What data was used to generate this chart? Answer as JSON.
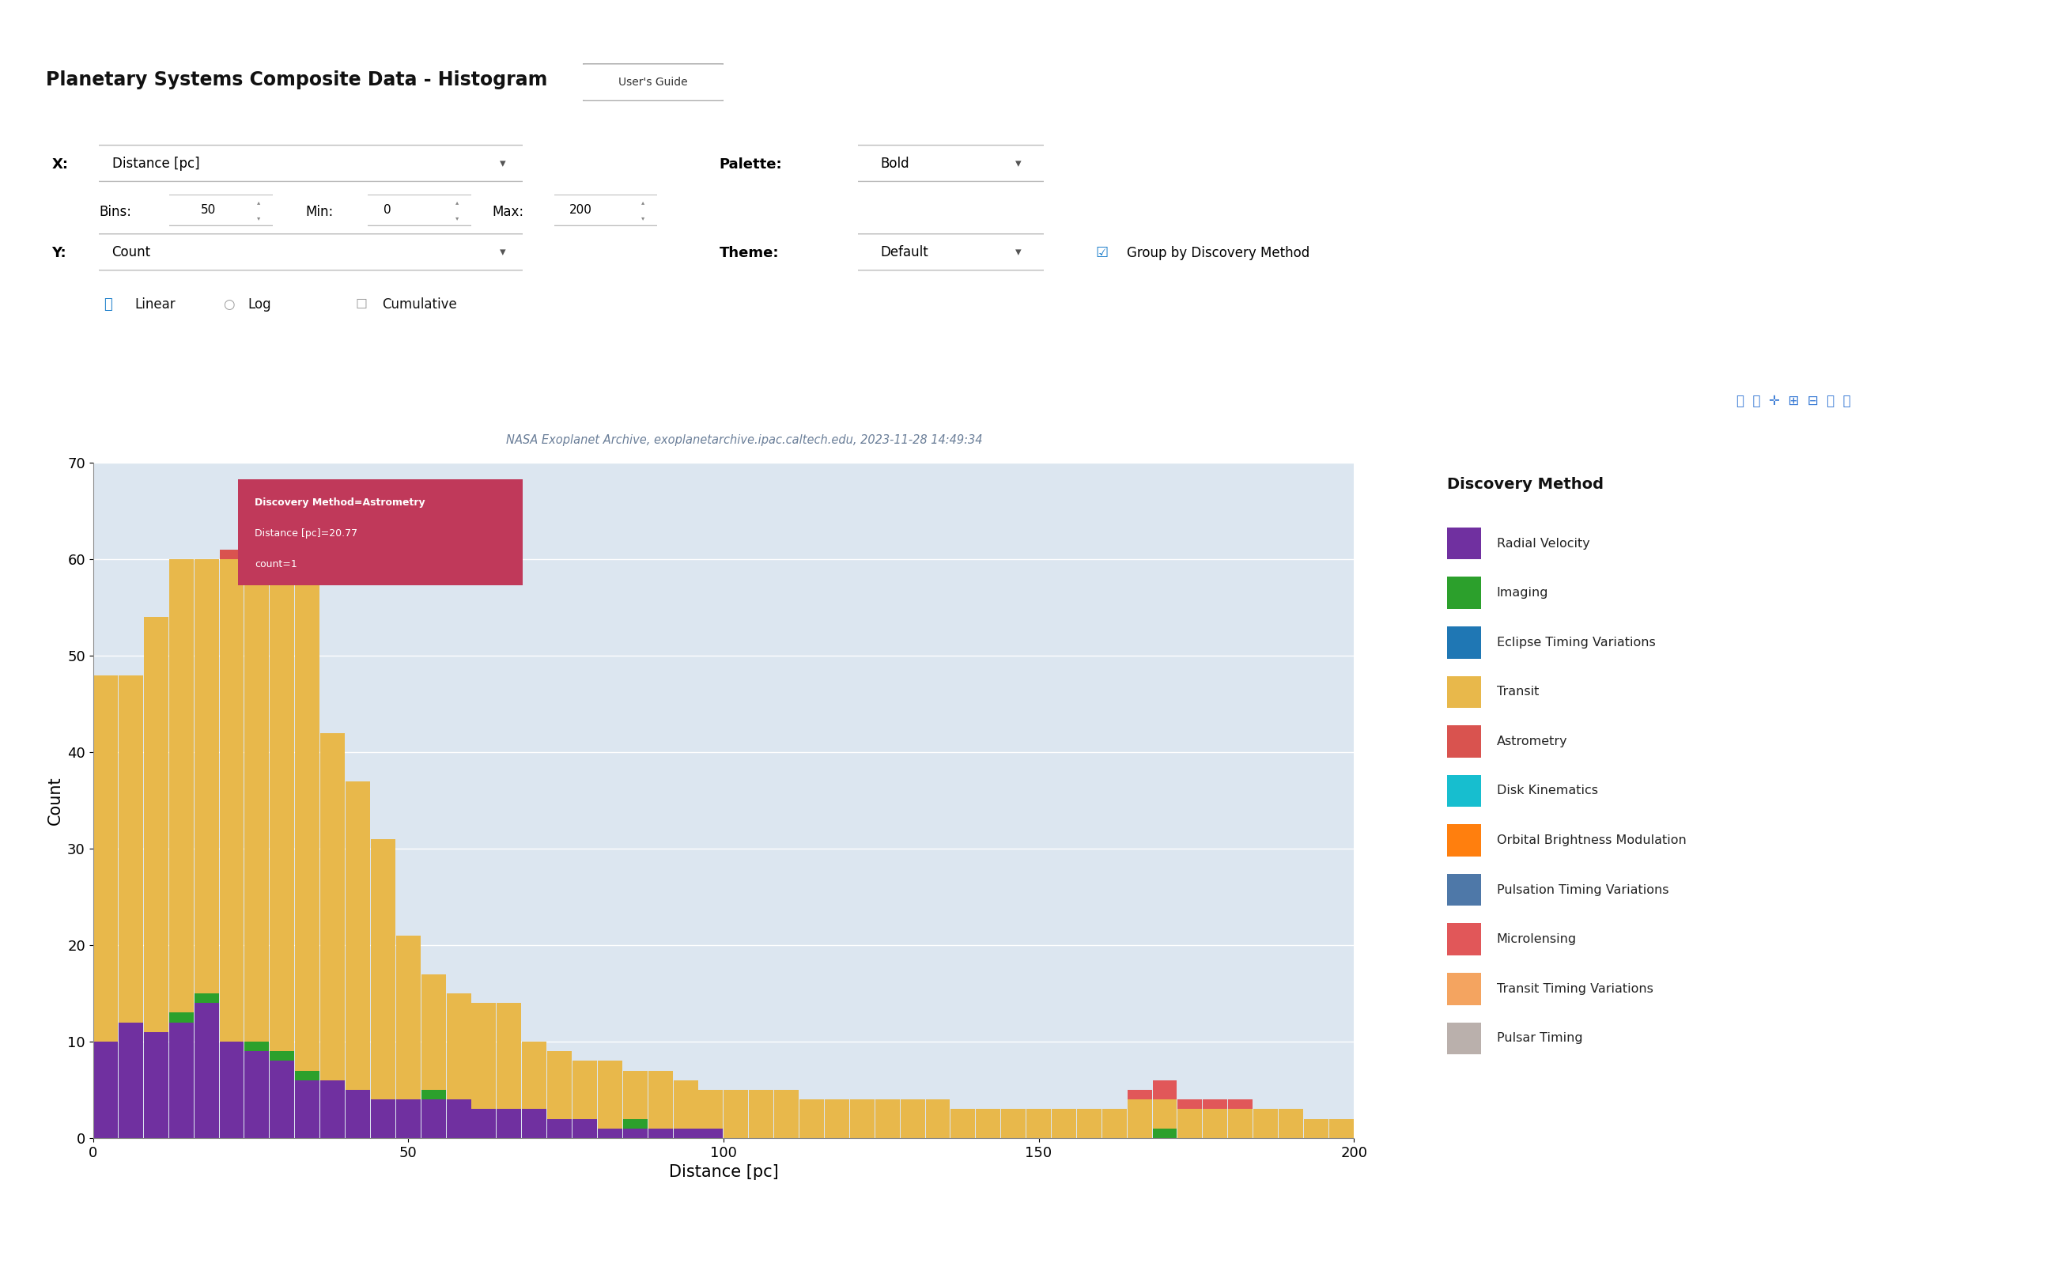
{
  "title": "Planetary Systems Composite Data - Histogram",
  "subtitle": "NASA Exoplanet Archive, exoplanetarchive.ipac.caltech.edu, 2023-11-28 14:49:34",
  "xlabel": "Distance [pc]",
  "ylabel": "Count",
  "xmin": 0,
  "xmax": 200,
  "ymin": 0,
  "ymax": 70,
  "bins": 50,
  "bg_color": "#dce6f0",
  "discovery_methods": [
    "Radial Velocity",
    "Imaging",
    "Eclipse Timing Variations",
    "Transit",
    "Astrometry",
    "Disk Kinematics",
    "Orbital Brightness Modulation",
    "Pulsation Timing Variations",
    "Microlensing",
    "Transit Timing Variations",
    "Pulsar Timing"
  ],
  "colors": {
    "Radial Velocity": "#7030a0",
    "Imaging": "#2ca02c",
    "Eclipse Timing Variations": "#1f77b4",
    "Transit": "#e8b84b",
    "Astrometry": "#d9534f",
    "Disk Kinematics": "#17becf",
    "Orbital Brightness Modulation": "#ff7f0e",
    "Pulsation Timing Variations": "#4e78a8",
    "Microlensing": "#e15759",
    "Transit Timing Variations": "#f4a460",
    "Pulsar Timing": "#bab0ac"
  },
  "bar_data": {
    "bin_edges": [
      0,
      4,
      8,
      12,
      16,
      20,
      24,
      28,
      32,
      36,
      40,
      44,
      48,
      52,
      56,
      60,
      64,
      68,
      72,
      76,
      80,
      84,
      88,
      92,
      96,
      100,
      104,
      108,
      112,
      116,
      120,
      124,
      128,
      132,
      136,
      140,
      144,
      148,
      152,
      156,
      160,
      164,
      168,
      172,
      176,
      180,
      184,
      188,
      192,
      196,
      200
    ],
    "Radial Velocity": [
      10,
      12,
      11,
      12,
      14,
      10,
      9,
      8,
      6,
      6,
      5,
      4,
      4,
      4,
      4,
      3,
      3,
      3,
      2,
      2,
      1,
      1,
      1,
      1,
      1,
      0,
      0,
      0,
      0,
      0,
      0,
      0,
      0,
      0,
      0,
      0,
      0,
      0,
      0,
      0,
      0,
      0,
      0,
      0,
      0,
      0,
      0,
      0,
      0,
      0
    ],
    "Imaging": [
      0,
      0,
      0,
      1,
      1,
      0,
      1,
      1,
      1,
      0,
      0,
      0,
      0,
      1,
      0,
      0,
      0,
      0,
      0,
      0,
      0,
      1,
      0,
      0,
      0,
      0,
      0,
      0,
      0,
      0,
      0,
      0,
      0,
      0,
      0,
      0,
      0,
      0,
      0,
      0,
      0,
      0,
      1,
      0,
      0,
      0,
      0,
      0,
      0,
      0
    ],
    "Eclipse Timing Variations": [
      0,
      0,
      0,
      0,
      0,
      0,
      0,
      0,
      0,
      0,
      0,
      0,
      0,
      0,
      0,
      0,
      0,
      0,
      0,
      0,
      0,
      0,
      0,
      0,
      0,
      0,
      0,
      0,
      0,
      0,
      0,
      0,
      0,
      0,
      0,
      0,
      0,
      0,
      0,
      0,
      0,
      0,
      0,
      0,
      0,
      0,
      0,
      0,
      0,
      0
    ],
    "Transit": [
      38,
      36,
      43,
      47,
      45,
      50,
      58,
      57,
      52,
      36,
      32,
      27,
      17,
      12,
      11,
      11,
      11,
      7,
      7,
      6,
      7,
      5,
      6,
      5,
      4,
      5,
      5,
      5,
      4,
      4,
      4,
      4,
      4,
      4,
      3,
      3,
      3,
      3,
      3,
      3,
      3,
      4,
      3,
      3,
      3,
      3,
      3,
      3,
      2,
      2
    ],
    "Astrometry": [
      0,
      0,
      0,
      0,
      0,
      1,
      0,
      0,
      0,
      0,
      0,
      0,
      0,
      0,
      0,
      0,
      0,
      0,
      0,
      0,
      0,
      0,
      0,
      0,
      0,
      0,
      0,
      0,
      0,
      0,
      0,
      0,
      0,
      0,
      0,
      0,
      0,
      0,
      0,
      0,
      0,
      0,
      0,
      0,
      0,
      0,
      0,
      0,
      0,
      0
    ],
    "Disk Kinematics": [
      0,
      0,
      0,
      0,
      0,
      0,
      0,
      0,
      0,
      0,
      0,
      0,
      0,
      0,
      0,
      0,
      0,
      0,
      0,
      0,
      0,
      0,
      0,
      0,
      0,
      0,
      0,
      0,
      0,
      0,
      0,
      0,
      0,
      0,
      0,
      0,
      0,
      0,
      0,
      0,
      0,
      0,
      0,
      0,
      0,
      0,
      0,
      0,
      0,
      0
    ],
    "Orbital Brightness Modulation": [
      0,
      0,
      0,
      0,
      0,
      0,
      0,
      0,
      0,
      0,
      0,
      0,
      0,
      0,
      0,
      0,
      0,
      0,
      0,
      0,
      0,
      0,
      0,
      0,
      0,
      0,
      0,
      0,
      0,
      0,
      0,
      0,
      0,
      0,
      0,
      0,
      0,
      0,
      0,
      0,
      0,
      0,
      0,
      0,
      0,
      0,
      0,
      0,
      0,
      0
    ],
    "Pulsation Timing Variations": [
      0,
      0,
      0,
      0,
      0,
      0,
      0,
      0,
      0,
      0,
      0,
      0,
      0,
      0,
      0,
      0,
      0,
      0,
      0,
      0,
      0,
      0,
      0,
      0,
      0,
      0,
      0,
      0,
      0,
      0,
      0,
      0,
      0,
      0,
      0,
      0,
      0,
      0,
      0,
      0,
      0,
      0,
      0,
      0,
      0,
      0,
      0,
      0,
      0,
      0
    ],
    "Microlensing": [
      0,
      0,
      0,
      0,
      0,
      0,
      0,
      0,
      0,
      0,
      0,
      0,
      0,
      0,
      0,
      0,
      0,
      0,
      0,
      0,
      0,
      0,
      0,
      0,
      0,
      0,
      0,
      0,
      0,
      0,
      0,
      0,
      0,
      0,
      0,
      0,
      0,
      0,
      0,
      0,
      0,
      1,
      2,
      1,
      1,
      1,
      0,
      0,
      0,
      0
    ],
    "Transit Timing Variations": [
      0,
      0,
      0,
      0,
      0,
      0,
      0,
      0,
      0,
      0,
      0,
      0,
      0,
      0,
      0,
      0,
      0,
      0,
      0,
      0,
      0,
      0,
      0,
      0,
      0,
      0,
      0,
      0,
      0,
      0,
      0,
      0,
      0,
      0,
      0,
      0,
      0,
      0,
      0,
      0,
      0,
      0,
      0,
      0,
      0,
      0,
      0,
      0,
      0,
      0
    ],
    "Pulsar Timing": [
      0,
      0,
      0,
      0,
      0,
      0,
      0,
      0,
      0,
      0,
      0,
      0,
      0,
      0,
      0,
      0,
      0,
      0,
      0,
      0,
      0,
      0,
      0,
      0,
      0,
      0,
      0,
      0,
      0,
      0,
      0,
      0,
      0,
      0,
      0,
      0,
      0,
      0,
      0,
      0,
      0,
      0,
      0,
      0,
      0,
      0,
      0,
      0,
      0,
      0
    ]
  },
  "tooltip_text": [
    "Discovery Method=Astrometry",
    "Distance [pc]=20.77",
    "count=1"
  ],
  "tooltip_color": "#c0395a"
}
